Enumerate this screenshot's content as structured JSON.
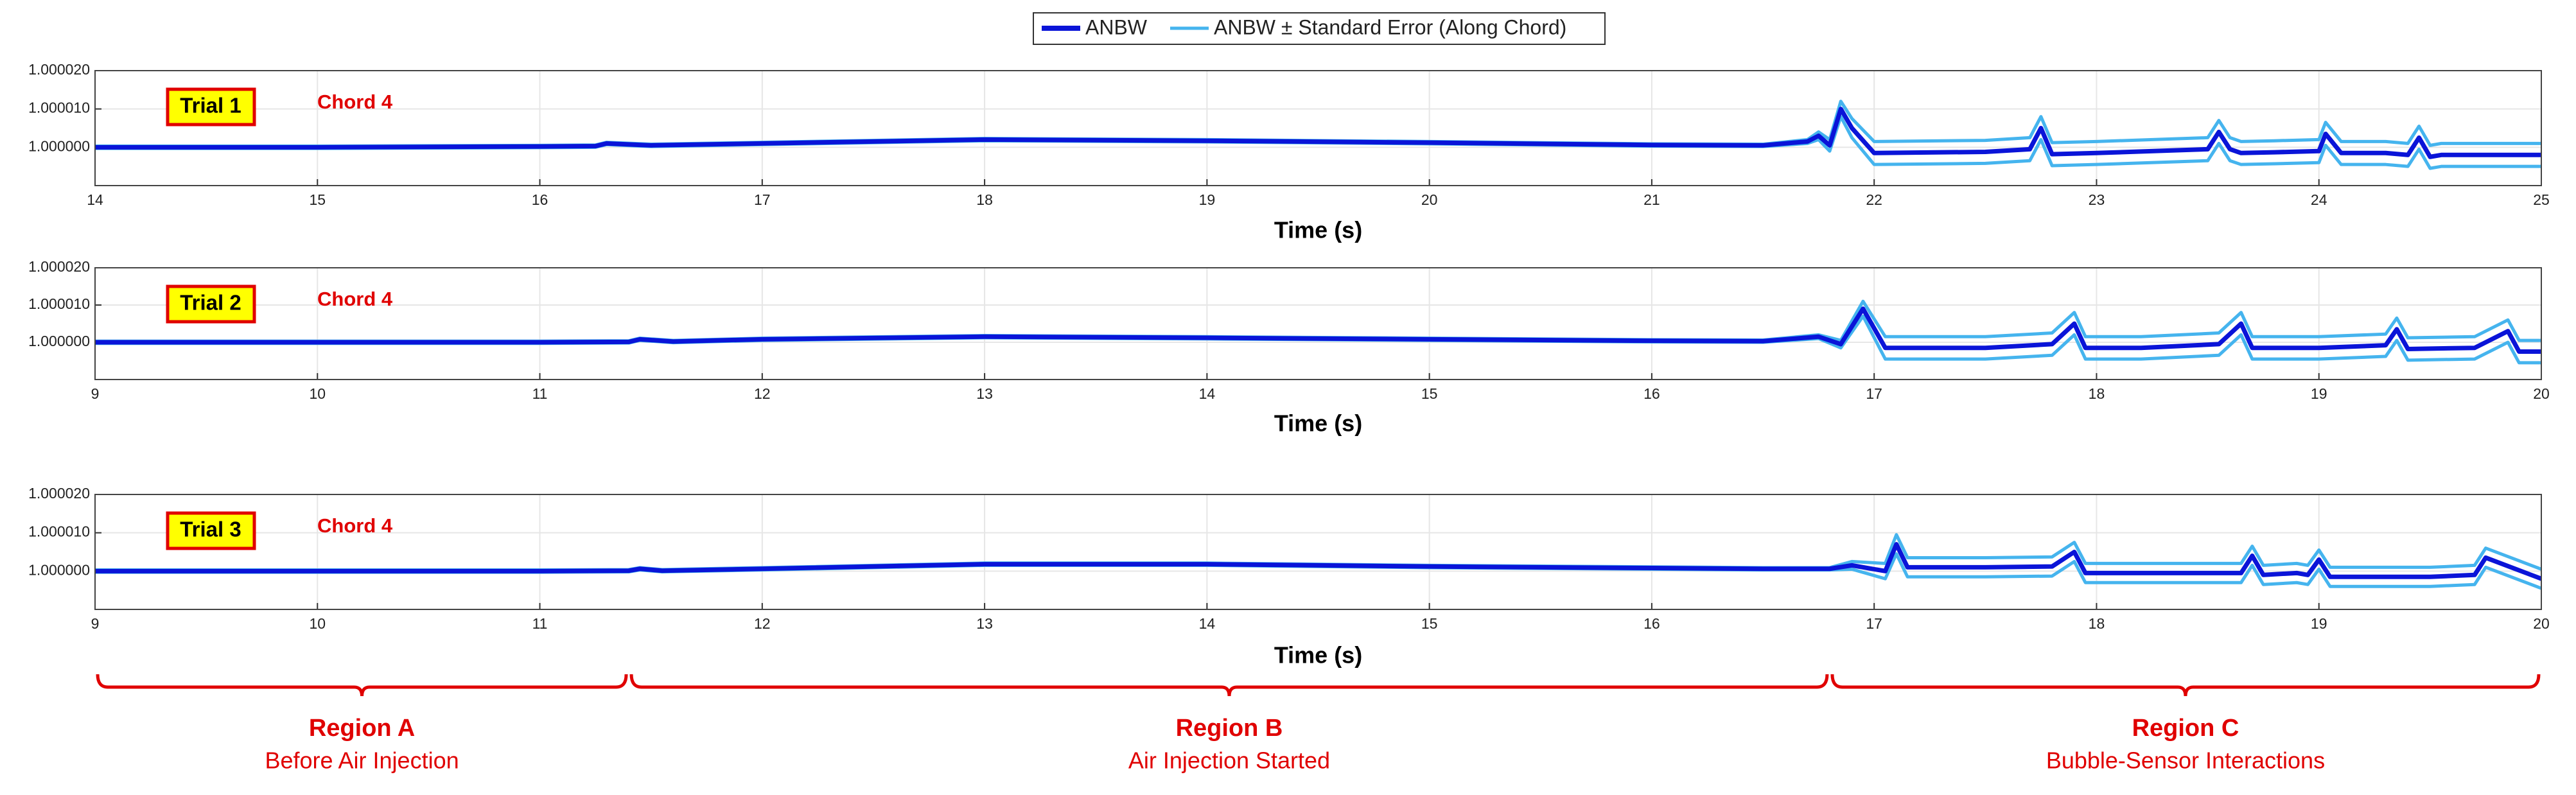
{
  "chart_data": [
    {
      "type": "line",
      "title": "Trial 1",
      "annotation": "Chord 4",
      "xlabel": "Time (s)",
      "x": [
        14,
        15,
        16,
        16.25,
        16.3,
        16.5,
        17,
        18,
        19,
        20,
        21,
        21.5,
        21.7,
        21.75,
        21.8,
        21.85,
        21.9,
        22,
        22.5,
        22.7,
        22.75,
        22.8,
        23,
        23.5,
        23.55,
        23.6,
        23.65,
        23.8,
        24,
        24.03,
        24.1,
        24.3,
        24.4,
        24.45,
        24.5,
        24.55,
        25
      ],
      "series": [
        {
          "name": "ANBW",
          "color": "#0a14d8",
          "values": [
            1,
            1,
            1.0000002,
            1.0000003,
            1.000001,
            1.0000005,
            1.000001,
            1.000002,
            1.0000017,
            1.0000012,
            1.0000006,
            1.0000005,
            1.0000015,
            1.000003,
            1.0000005,
            1.00001,
            1.000005,
            0.9999985,
            0.9999988,
            0.9999995,
            1.000005,
            0.9999982,
            0.9999985,
            0.9999995,
            1.000004,
            0.9999995,
            0.9999985,
            0.9999987,
            0.999999,
            1.0000035,
            0.9999985,
            0.9999985,
            0.999998,
            1.0000025,
            0.9999975,
            0.999998,
            0.999998
          ]
        },
        {
          "name": "ANBW ± Standard Error (Along Chord)",
          "color": "#45b4ee",
          "values": [
            3e-07,
            3e-07,
            3e-07,
            3e-07,
            3e-07,
            3e-07,
            3e-07,
            3e-07,
            3e-07,
            3e-07,
            3e-07,
            3e-07,
            5e-07,
            1e-06,
            1.5e-06,
            2e-06,
            2.5e-06,
            3e-06,
            3e-06,
            3e-06,
            3e-06,
            3e-06,
            3e-06,
            3e-06,
            3e-06,
            3e-06,
            3e-06,
            3e-06,
            3e-06,
            3e-06,
            3e-06,
            3e-06,
            3e-06,
            3e-06,
            3e-06,
            3e-06,
            3e-06
          ]
        }
      ],
      "xlim": [
        14,
        25
      ],
      "xticks": [
        14,
        15,
        16,
        17,
        18,
        19,
        20,
        21,
        22,
        23,
        24,
        25
      ],
      "ylim": [
        0.99999,
        1.00002
      ],
      "yticks": [
        {
          "value": 1,
          "label": "1.000000"
        },
        {
          "value": 1.00001,
          "label": "1.000010"
        },
        {
          "value": 1.00002,
          "label": "1.000020"
        }
      ],
      "grid": true
    },
    {
      "type": "line",
      "title": "Trial 2",
      "annotation": "Chord 4",
      "xlabel": "Time (s)",
      "x": [
        9,
        10,
        11,
        11.4,
        11.45,
        11.6,
        12,
        13,
        14,
        15,
        16,
        16.5,
        16.75,
        16.85,
        16.95,
        17.05,
        17.5,
        17.8,
        17.9,
        17.95,
        18.2,
        18.55,
        18.65,
        18.7,
        19,
        19.3,
        19.35,
        19.4,
        19.7,
        19.85,
        19.9,
        20
      ],
      "series": [
        {
          "color": "#0a14d8",
          "values": [
            1,
            1,
            1,
            1.0000001,
            1.0000008,
            1.0000002,
            1.0000008,
            1.0000015,
            1.0000012,
            1.0000008,
            1.0000004,
            1.0000003,
            1.0000015,
            0.9999995,
            1.000009,
            0.9999985,
            0.9999985,
            0.9999995,
            1.000005,
            0.9999985,
            0.9999985,
            0.9999995,
            1.000005,
            0.9999985,
            0.9999985,
            0.9999992,
            1.0000035,
            0.9999982,
            0.9999985,
            1.000003,
            0.9999975,
            0.9999975
          ]
        },
        {
          "color": "#45b4ee",
          "values": [
            3e-07,
            3e-07,
            3e-07,
            3e-07,
            3e-07,
            3e-07,
            3e-07,
            3e-07,
            3e-07,
            3e-07,
            3e-07,
            3e-07,
            5e-07,
            1e-06,
            2e-06,
            3e-06,
            3e-06,
            3e-06,
            3e-06,
            3e-06,
            3e-06,
            3e-06,
            3e-06,
            3e-06,
            3e-06,
            3e-06,
            3e-06,
            3e-06,
            3e-06,
            3e-06,
            3e-06,
            3e-06
          ]
        }
      ],
      "xlim": [
        9,
        20
      ],
      "xticks": [
        9,
        10,
        11,
        12,
        13,
        14,
        15,
        16,
        17,
        18,
        19,
        20
      ],
      "ylim": [
        0.99999,
        1.00002
      ],
      "yticks": [
        {
          "value": 1,
          "label": "1.000000"
        },
        {
          "value": 1.00001,
          "label": "1.000010"
        },
        {
          "value": 1.00002,
          "label": "1.000020"
        }
      ],
      "grid": true
    },
    {
      "type": "line",
      "title": "Trial 3",
      "annotation": "Chord 4",
      "xlabel": "Time (s)",
      "x": [
        9,
        10,
        11,
        11.4,
        11.45,
        11.55,
        12,
        13,
        14,
        15,
        16,
        16.5,
        16.8,
        16.9,
        17.05,
        17.1,
        17.15,
        17.5,
        17.8,
        17.9,
        17.95,
        18.5,
        18.65,
        18.7,
        18.75,
        18.9,
        18.95,
        19,
        19.05,
        19.5,
        19.7,
        19.75,
        20
      ],
      "series": [
        {
          "color": "#0a14d8",
          "values": [
            1,
            1,
            1,
            1.0000001,
            1.0000006,
            1.0000001,
            1.0000006,
            1.0000018,
            1.0000018,
            1.0000012,
            1.0000008,
            1.0000006,
            1.0000006,
            1.0000015,
            1,
            1.000007,
            1.000001,
            1.000001,
            1.0000012,
            1.000005,
            0.9999995,
            0.9999995,
            0.9999995,
            1.000004,
            0.999999,
            0.9999995,
            0.999999,
            1.000003,
            0.9999985,
            0.9999985,
            0.999999,
            1.0000035,
            0.999998
          ]
        },
        {
          "color": "#45b4ee",
          "values": [
            3e-07,
            3e-07,
            3e-07,
            3e-07,
            3e-07,
            3e-07,
            3e-07,
            3e-07,
            3e-07,
            3e-07,
            3e-07,
            3e-07,
            3e-07,
            1e-06,
            2e-06,
            2.5e-06,
            2.5e-06,
            2.5e-06,
            2.5e-06,
            2.5e-06,
            2.5e-06,
            2.5e-06,
            2.5e-06,
            2.5e-06,
            2.5e-06,
            2.5e-06,
            2.5e-06,
            2.5e-06,
            2.5e-06,
            2.5e-06,
            2.5e-06,
            2.5e-06,
            2.5e-06
          ]
        }
      ],
      "xlim": [
        9,
        20
      ],
      "xticks": [
        9,
        10,
        11,
        12,
        13,
        14,
        15,
        16,
        17,
        18,
        19,
        20
      ],
      "ylim": [
        0.99999,
        1.00002
      ],
      "yticks": [
        {
          "value": 1,
          "label": "1.000000"
        },
        {
          "value": 1.00001,
          "label": "1.000010"
        },
        {
          "value": 1.00002,
          "label": "1.000020"
        }
      ],
      "grid": true
    }
  ],
  "regions": [
    {
      "label": "Region A",
      "description": "Before Air Injection",
      "xrange": [
        9,
        11.4
      ]
    },
    {
      "label": "Region B",
      "description": "Air Injection Started",
      "xrange": [
        11.4,
        16.8
      ]
    },
    {
      "label": "Region C",
      "description": "Bubble-Sensor Interactions",
      "xrange": [
        16.8,
        20
      ]
    }
  ]
}
